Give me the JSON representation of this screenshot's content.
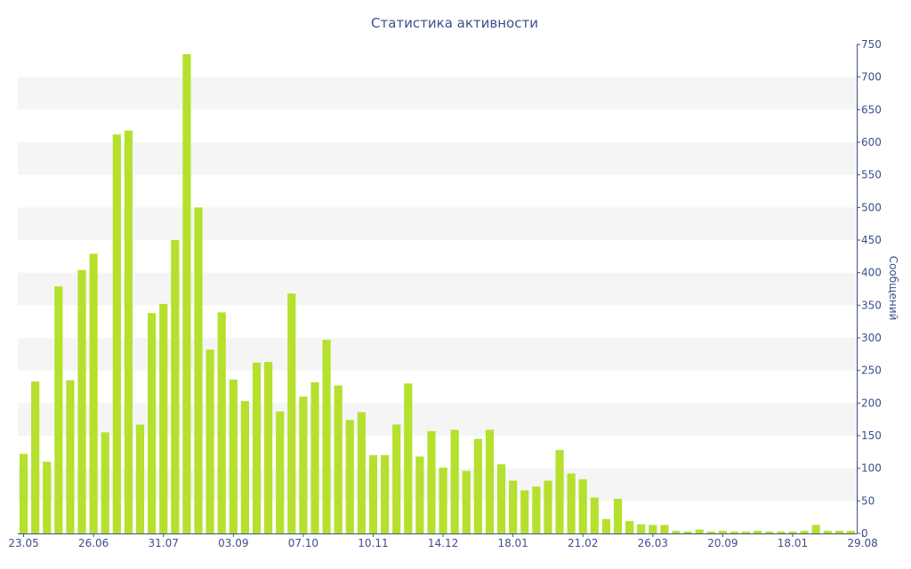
{
  "colors": {
    "bar": "#b5e02e",
    "band": "#f5f5f5",
    "axis": "#3d4f8a",
    "text": "#3d4f8a",
    "background": "#ffffff"
  },
  "chart_data": {
    "type": "bar",
    "title": "Статистика активности",
    "xlabel": "",
    "ylabel": "Сообщений",
    "y_axis_side": "right",
    "ylim": [
      0,
      750
    ],
    "y_ticks": [
      0,
      50,
      100,
      150,
      200,
      250,
      300,
      350,
      400,
      450,
      500,
      550,
      600,
      650,
      700,
      750
    ],
    "grid": "alternating horizontal bands",
    "x_tick_labels": [
      {
        "index": 0,
        "label": "23.05"
      },
      {
        "index": 6,
        "label": "26.06"
      },
      {
        "index": 12,
        "label": "31.07"
      },
      {
        "index": 18,
        "label": "03.09"
      },
      {
        "index": 24,
        "label": "07.10"
      },
      {
        "index": 30,
        "label": "10.11"
      },
      {
        "index": 36,
        "label": "14.12"
      },
      {
        "index": 42,
        "label": "18.01"
      },
      {
        "index": 48,
        "label": "21.02"
      },
      {
        "index": 54,
        "label": "26.03"
      },
      {
        "index": 60,
        "label": "20.09"
      },
      {
        "index": 66,
        "label": "18.01"
      },
      {
        "index": 72,
        "label": "29.08"
      }
    ],
    "values": [
      122,
      233,
      110,
      379,
      235,
      404,
      429,
      155,
      612,
      618,
      167,
      338,
      352,
      450,
      735,
      500,
      282,
      339,
      236,
      203,
      262,
      263,
      187,
      368,
      210,
      232,
      297,
      227,
      174,
      186,
      120,
      120,
      167,
      230,
      118,
      157,
      101,
      159,
      96,
      145,
      159,
      106,
      81,
      66,
      72,
      81,
      128,
      92,
      83,
      55,
      22,
      53,
      19,
      14,
      13,
      13,
      4,
      3,
      6,
      3,
      4,
      3,
      3,
      4,
      3,
      3,
      3,
      4,
      13,
      4,
      4,
      4
    ]
  }
}
